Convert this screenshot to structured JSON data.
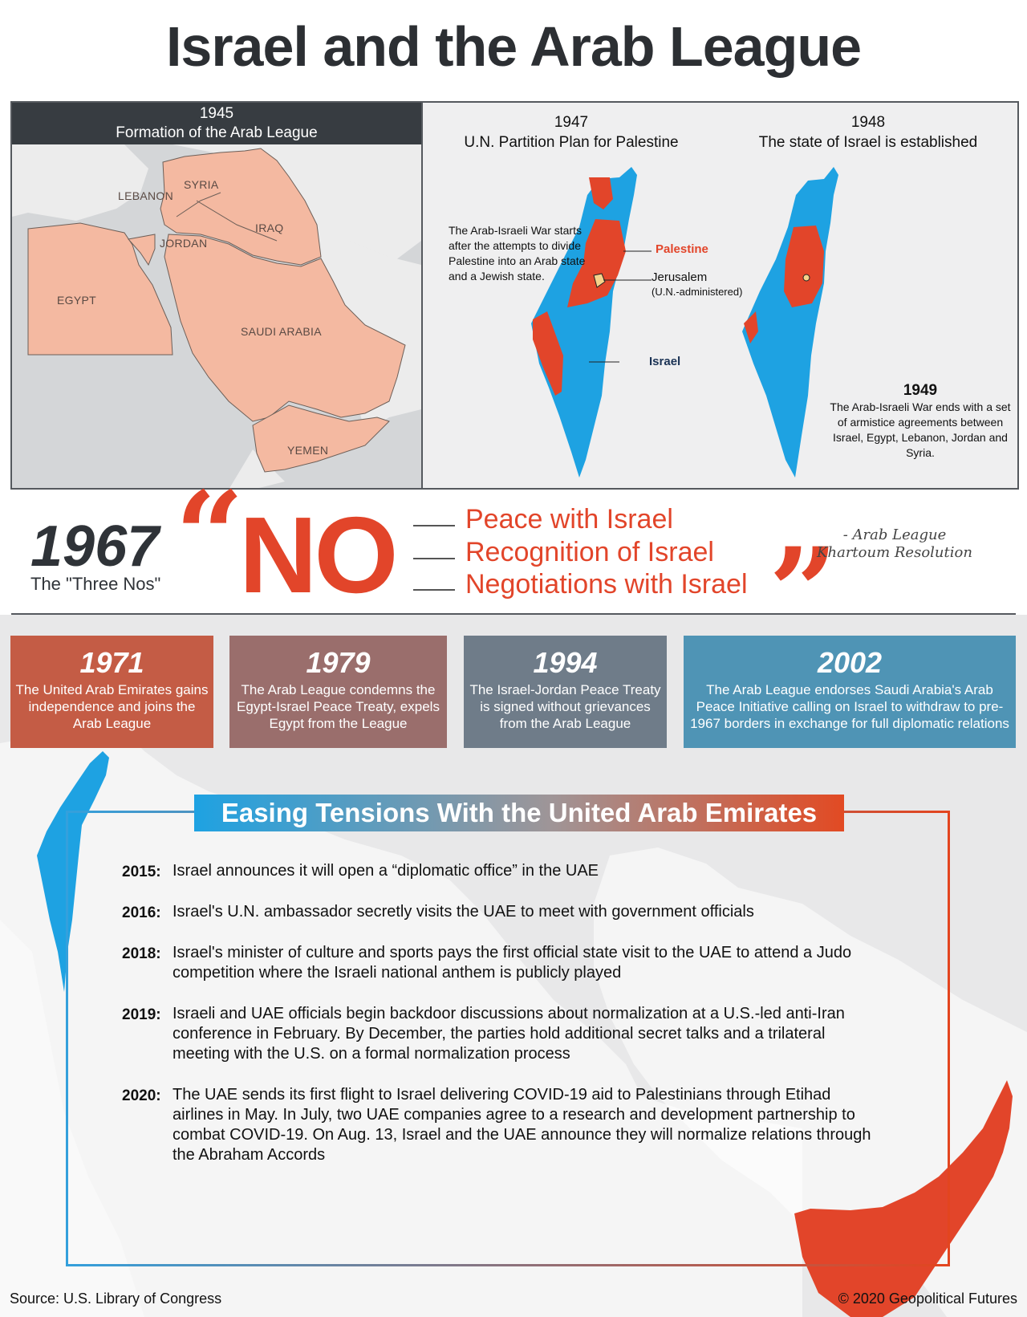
{
  "title": "Israel and the Arab League",
  "formation": {
    "year": "1945",
    "caption": "Formation of the Arab League",
    "countries": [
      "LEBANON",
      "SYRIA",
      "IRAQ",
      "JORDAN",
      "EGYPT",
      "SAUDI ARABIA",
      "YEMEN"
    ]
  },
  "partition": {
    "year": "1947",
    "caption": "U.N. Partition Plan for Palestine",
    "note": "The Arab-Israeli War starts after the attempts to divide Palestine into an Arab state and a Jewish state.",
    "labels": {
      "palestine": "Palestine",
      "jerusalem": "Jerusalem",
      "jerusalem_sub": "(U.N.-administered)",
      "israel": "Israel"
    }
  },
  "establishment": {
    "year": "1948",
    "caption": "The state of Israel is established",
    "armistice_year": "1949",
    "armistice_text": "The Arab-Israeli War ends with a set of armistice agreements between Israel, Egypt, Lebanon, Jordan and Syria."
  },
  "khartoum": {
    "year": "1967",
    "subtitle": "The \"Three Nos\"",
    "no": "NO",
    "quote_open": "“",
    "quote_close": "”",
    "items": [
      "Peace with Israel",
      "Recognition of Israel",
      "Negotiations with Israel"
    ],
    "attribution_line1": "- Arab League",
    "attribution_line2": "Khartoum Resolution"
  },
  "timeline": [
    {
      "year": "1971",
      "text": "The United Arab Emirates gains independence and joins the Arab League",
      "color": "#c45c45"
    },
    {
      "year": "1979",
      "text": "The Arab League condemns the Egypt-Israel Peace Treaty, expels Egypt from the League",
      "color": "#9a6e6c"
    },
    {
      "year": "1994",
      "text": "The Israel-Jordan Peace Treaty is signed without grievances from the Arab League",
      "color": "#6f7c89"
    },
    {
      "year": "2002",
      "text": "The Arab League endorses Saudi Arabia's Arab Peace Initiative calling on Israel to withdraw to pre-1967 borders in exchange for full diplomatic relations",
      "color": "#4f94b5"
    }
  ],
  "uae": {
    "title": "Easing Tensions With the United Arab Emirates",
    "events": [
      {
        "year": "2015:",
        "text": "Israel announces it will open a “diplomatic office” in the UAE"
      },
      {
        "year": "2016:",
        "text": "Israel's U.N. ambassador secretly visits the UAE to meet with government officials"
      },
      {
        "year": "2018:",
        "text": "Israel's minister of culture and sports pays the first official state visit to the UAE to attend a Judo competition where the Israeli national anthem is publicly played"
      },
      {
        "year": "2019:",
        "text": "Israeli and UAE officials begin backdoor discussions about normalization at a U.S.-led anti-Iran conference in February. By December, the parties hold additional secret talks and a trilateral meeting with the U.S. on a formal normalization process"
      },
      {
        "year": "2020:",
        "text": "The UAE sends its first flight to Israel delivering COVID-19 aid to Palestinians through Etihad airlines in May. In July, two UAE companies agree to a research and development partnership to combat COVID-19. On Aug. 13, Israel and the UAE announce they will normalize relations through the Abraham Accords"
      }
    ]
  },
  "footer": {
    "source": "Source: U.S. Library of Congress",
    "copyright": "© 2020 Geopolitical Futures"
  },
  "colors": {
    "israel_blue": "#1ea2e2",
    "palestine_red": "#e2452a",
    "arab_league_pink": "#f4b9a1",
    "header_dark": "#373c41"
  }
}
